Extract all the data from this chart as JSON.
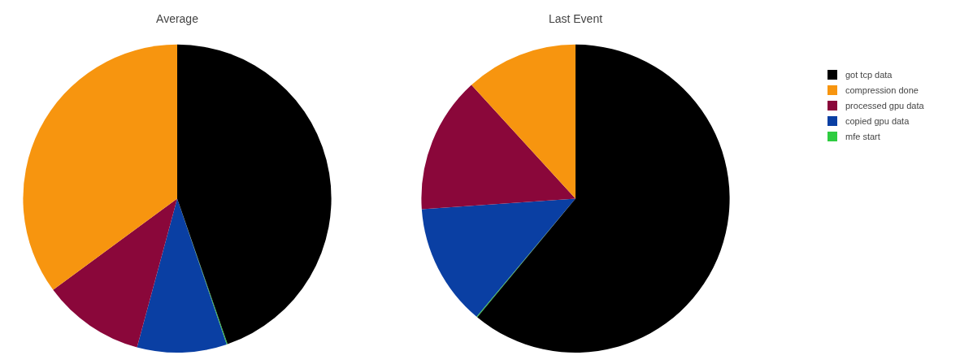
{
  "chart_data": [
    {
      "type": "pie",
      "title": "Average",
      "categories": [
        "got tcp data",
        "compression done",
        "processed gpu data",
        "copied gpu data",
        "mfe start"
      ],
      "values": [
        44.7,
        35.1,
        10.7,
        9.4,
        0.1
      ],
      "colors": [
        "#000000",
        "#f7950f",
        "#8a073a",
        "#0a3fa3",
        "#2ecc40"
      ],
      "legend": "top right"
    },
    {
      "type": "pie",
      "title": "Last Event",
      "categories": [
        null,
        null,
        null,
        null,
        null
      ],
      "values": [
        61.0,
        11.8,
        14.3,
        12.8,
        0.1
      ],
      "colors": [
        "#000000",
        "#f7950f",
        "#8a073a",
        "#0a3fa3",
        "#2ecc40"
      ]
    }
  ]
}
